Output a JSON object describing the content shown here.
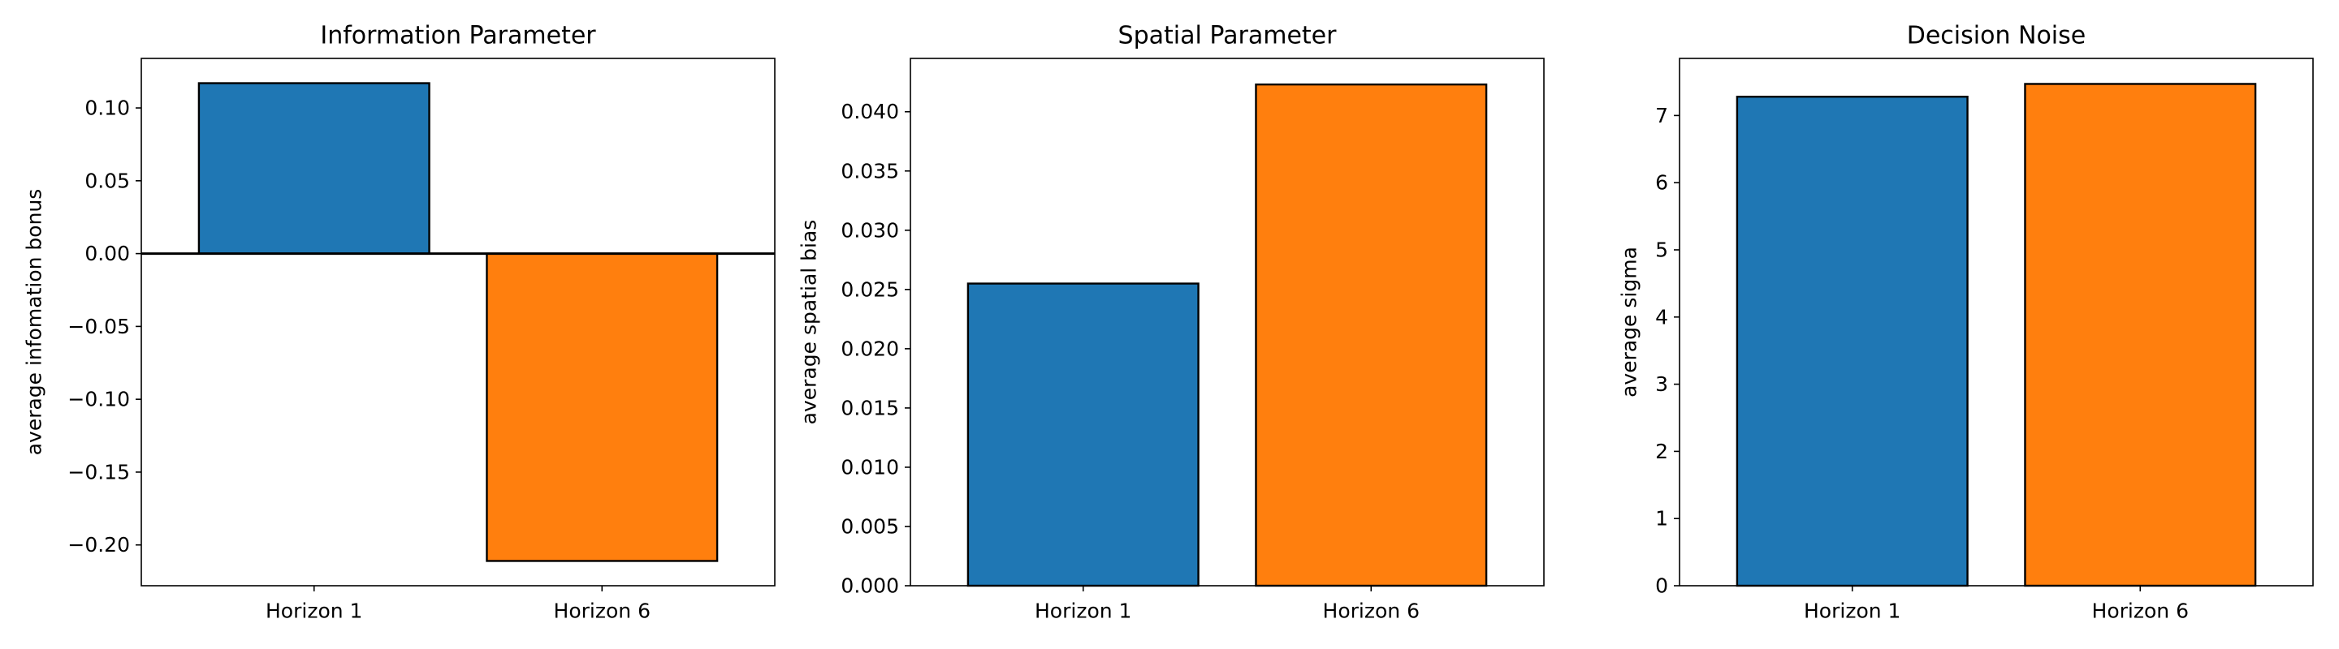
{
  "chart_data": [
    {
      "type": "bar",
      "title": "Information Parameter",
      "xlabel": "",
      "ylabel": "average infomation bonus",
      "categories": [
        "Horizon 1",
        "Horizon 6"
      ],
      "values": [
        0.117,
        -0.211
      ],
      "colors": [
        "#1f77b4",
        "#ff7f0e"
      ],
      "ylim": [
        -0.228,
        0.134
      ],
      "yticks": [
        -0.2,
        -0.15,
        -0.1,
        -0.05,
        0,
        0.05,
        0.1
      ],
      "ytick_labels": [
        "−0.20",
        "−0.15",
        "−0.10",
        "−0.05",
        "0.00",
        "0.05",
        "0.10"
      ],
      "zero_line": true,
      "grid": false
    },
    {
      "type": "bar",
      "title": "Spatial Parameter",
      "xlabel": "",
      "ylabel": "average spatial bias",
      "categories": [
        "Horizon 1",
        "Horizon 6"
      ],
      "values": [
        0.0255,
        0.0423
      ],
      "colors": [
        "#1f77b4",
        "#ff7f0e"
      ],
      "ylim": [
        0,
        0.0445
      ],
      "yticks": [
        0,
        0.005,
        0.01,
        0.015,
        0.02,
        0.025,
        0.03,
        0.035,
        0.04
      ],
      "ytick_labels": [
        "0.000",
        "0.005",
        "0.010",
        "0.015",
        "0.020",
        "0.025",
        "0.030",
        "0.035",
        "0.040"
      ],
      "zero_line": false,
      "grid": false
    },
    {
      "type": "bar",
      "title": "Decision Noise",
      "xlabel": "",
      "ylabel": "average sigma",
      "categories": [
        "Horizon 1",
        "Horizon 6"
      ],
      "values": [
        7.28,
        7.47
      ],
      "colors": [
        "#1f77b4",
        "#ff7f0e"
      ],
      "ylim": [
        0,
        7.85
      ],
      "yticks": [
        0,
        1,
        2,
        3,
        4,
        5,
        6,
        7
      ],
      "ytick_labels": [
        "0",
        "1",
        "2",
        "3",
        "4",
        "5",
        "6",
        "7"
      ],
      "zero_line": false,
      "grid": false
    }
  ]
}
